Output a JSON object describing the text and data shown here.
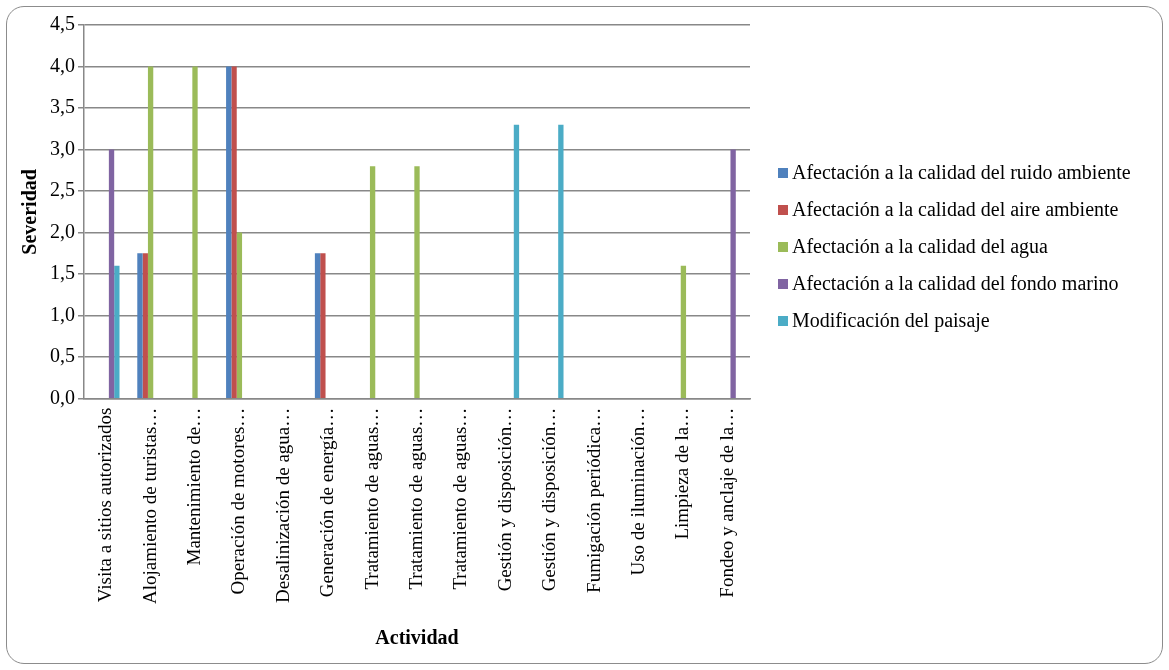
{
  "chart_data": {
    "type": "bar",
    "xlabel": "Actividad",
    "ylabel": "Severidad",
    "categories": [
      "Visita a sitios autorizados",
      "Alojamiento de turistas…",
      "Mantenimiento de…",
      "Operación de motores…",
      "Desalinización de agua…",
      "Generación de energía…",
      "Tratamiento de aguas…",
      "Tratamiento de aguas…",
      "Tratamiento de aguas…",
      "Gestión y disposición…",
      "Gestión y disposición…",
      "Fumigación periódica…",
      "Uso de iluminación…",
      "Limpieza de la…",
      "Fondeo y anclaje de la…"
    ],
    "series": [
      {
        "name": "Afectación a la calidad del ruido ambiente",
        "color": "#4f81bd",
        "values": [
          null,
          1.75,
          null,
          4.0,
          null,
          1.75,
          null,
          null,
          null,
          null,
          null,
          null,
          null,
          null,
          null
        ]
      },
      {
        "name": "Afectación a la calidad del aire ambiente",
        "color": "#c0504d",
        "values": [
          null,
          1.75,
          null,
          4.0,
          null,
          1.75,
          null,
          null,
          null,
          null,
          null,
          null,
          null,
          null,
          null
        ]
      },
      {
        "name": "Afectación a la calidad del agua",
        "color": "#9bbb59",
        "values": [
          null,
          4.0,
          4.0,
          2.0,
          null,
          null,
          2.8,
          2.8,
          null,
          null,
          null,
          null,
          null,
          1.6,
          null
        ]
      },
      {
        "name": "Afectación a la calidad del fondo marino",
        "color": "#8064a2",
        "values": [
          3.0,
          null,
          null,
          null,
          null,
          null,
          null,
          null,
          null,
          null,
          null,
          null,
          null,
          null,
          3.0
        ]
      },
      {
        "name": "Modificación del paisaje",
        "color": "#4bacc6",
        "values": [
          1.6,
          null,
          null,
          null,
          null,
          null,
          null,
          null,
          null,
          3.3,
          3.3,
          null,
          null,
          null,
          null
        ]
      }
    ],
    "ylim": [
      0,
      4.5
    ],
    "yticks": [
      {
        "value": 0,
        "label": "0,0"
      },
      {
        "value": 0.5,
        "label": "0,5"
      },
      {
        "value": 1,
        "label": "1,0"
      },
      {
        "value": 1.5,
        "label": "1,5"
      },
      {
        "value": 2,
        "label": "2,0"
      },
      {
        "value": 2.5,
        "label": "2,5"
      },
      {
        "value": 3,
        "label": "3,0"
      },
      {
        "value": 3.5,
        "label": "3,5"
      },
      {
        "value": 4,
        "label": "4,0"
      },
      {
        "value": 4.5,
        "label": "4,5"
      }
    ],
    "grid": "y",
    "legend": "right"
  }
}
